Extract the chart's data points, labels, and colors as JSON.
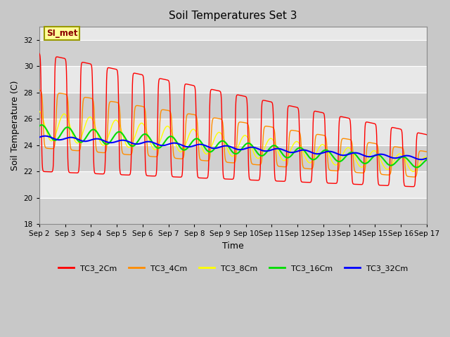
{
  "title": "Soil Temperatures Set 3",
  "xlabel": "Time",
  "ylabel": "Soil Temperature (C)",
  "ylim": [
    18,
    33
  ],
  "xlim_days": [
    0,
    15
  ],
  "x_tick_labels": [
    "Sep 2",
    "Sep 3",
    "Sep 4",
    "Sep 5",
    "Sep 6",
    "Sep 7",
    "Sep 8",
    "Sep 9",
    "Sep 10",
    "Sep 11",
    "Sep 12",
    "Sep 13",
    "Sep 14",
    "Sep 15",
    "Sep 16",
    "Sep 17"
  ],
  "x_tick_positions": [
    0,
    1,
    2,
    3,
    4,
    5,
    6,
    7,
    8,
    9,
    10,
    11,
    12,
    13,
    14,
    15
  ],
  "y_ticks": [
    18,
    20,
    22,
    24,
    26,
    28,
    30,
    32
  ],
  "colors": {
    "TC3_2Cm": "#ff0000",
    "TC3_4Cm": "#ff8c00",
    "TC3_8Cm": "#ffff00",
    "TC3_16Cm": "#00dd00",
    "TC3_32Cm": "#0000ff"
  },
  "fig_bg": "#c8c8c8",
  "plot_bg_light": "#e8e8e8",
  "plot_bg_dark": "#d0d0d0",
  "annotation_text": "SI_met",
  "annotation_bg": "#ffff99",
  "annotation_border": "#999900"
}
